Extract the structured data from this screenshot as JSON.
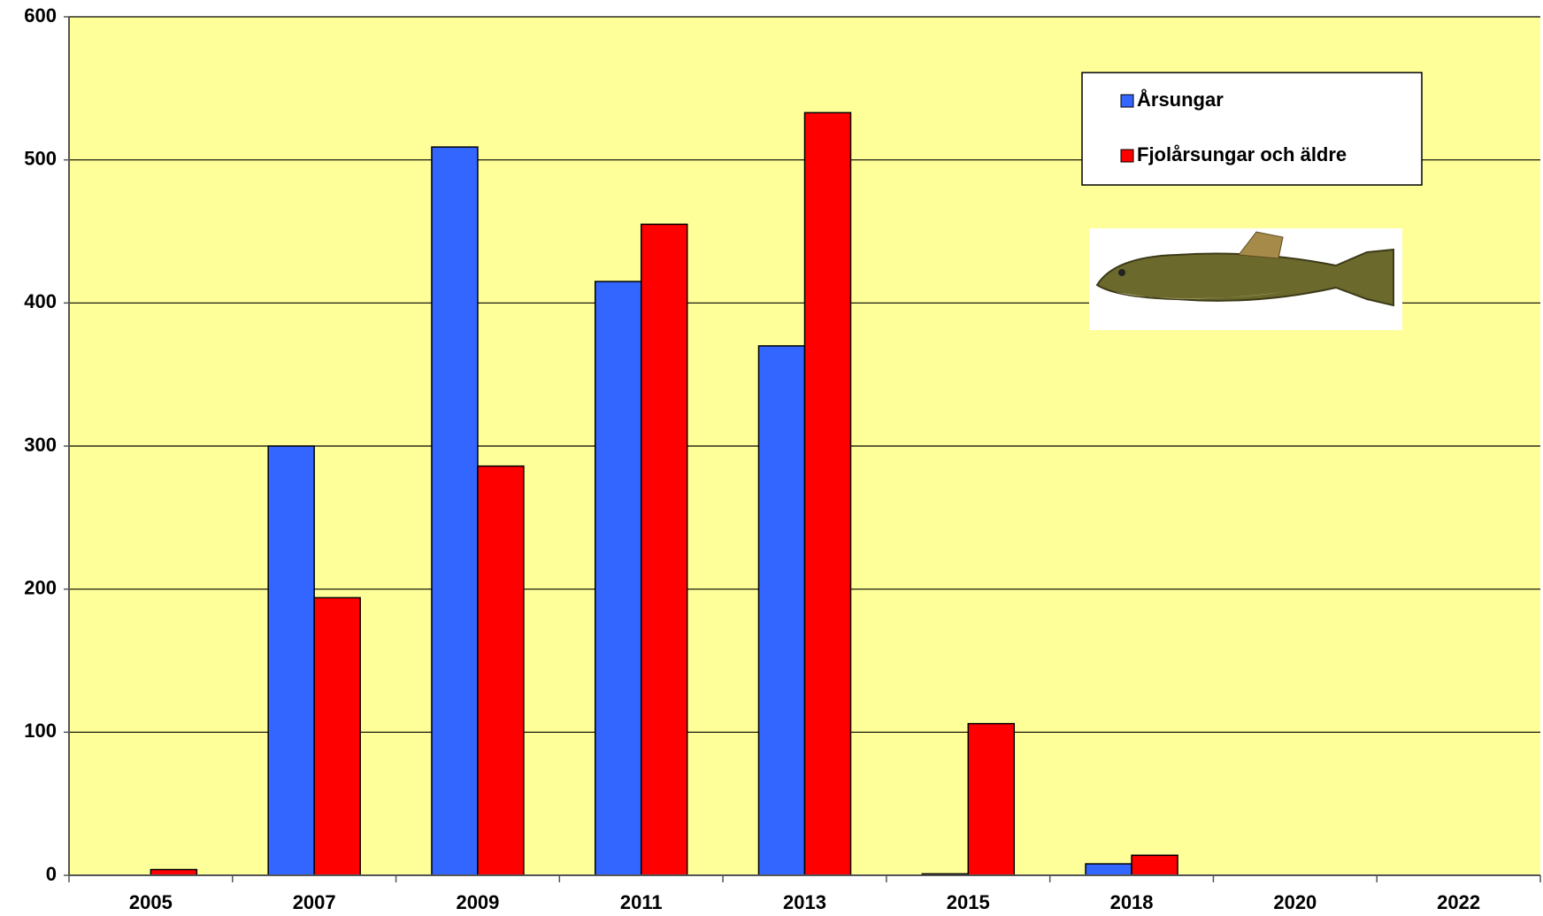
{
  "chart_data": {
    "type": "bar",
    "categories": [
      "2005",
      "2007",
      "2009",
      "2011",
      "2013",
      "2015",
      "2018",
      "2020",
      "2022"
    ],
    "series": [
      {
        "name": "Årsungar",
        "color": "#3366ff",
        "values": [
          null,
          300,
          509,
          415,
          370,
          1,
          8,
          null,
          null
        ]
      },
      {
        "name": "Fjolårsungar och äldre",
        "color": "#ff0000",
        "values": [
          4,
          194,
          286,
          455,
          533,
          106,
          14,
          null,
          null
        ]
      }
    ],
    "ylim": [
      0,
      600
    ],
    "yticks": [
      0,
      100,
      200,
      300,
      400,
      500,
      600
    ],
    "grid": true,
    "background": "#ffff99",
    "legend": "upper right"
  }
}
